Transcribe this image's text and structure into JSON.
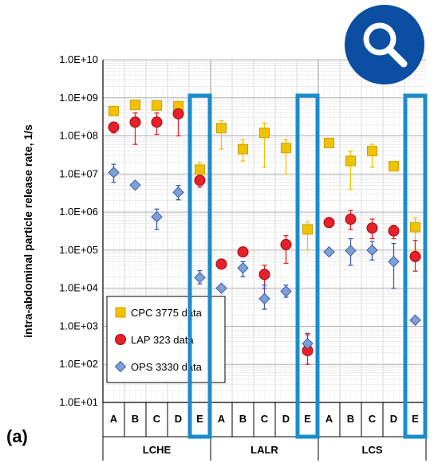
{
  "panel_label": "(a)",
  "zoom_icon": "magnifier-icon",
  "colors": {
    "cpc": "#f2c200",
    "cpc_edge": "#c9a000",
    "lap": "#e8202a",
    "lap_edge": "#9a0d12",
    "ops": "#7e9fd8",
    "ops_edge": "#3a5da8",
    "highlight": "#1a8ccc",
    "badge": "#0b4ea2"
  },
  "chart_data": {
    "type": "scatter",
    "ylabel": "intra-abdominal  particle release rate, 1/s",
    "yscale": "log",
    "ylim": [
      10,
      10000000000
    ],
    "yticks": [
      "1.0E+01",
      "1.0E+02",
      "1.0E+03",
      "1.0E+04",
      "1.0E+05",
      "1.0E+06",
      "1.0E+07",
      "1.0E+08",
      "1.0E+09",
      "1.0E+10"
    ],
    "groups": [
      "LCHE",
      "LALR",
      "LCS"
    ],
    "categories": [
      "A",
      "B",
      "C",
      "D",
      "E",
      "A",
      "B",
      "C",
      "D",
      "E",
      "A",
      "B",
      "C",
      "D",
      "E"
    ],
    "highlighted_categories": [
      4,
      9,
      14
    ],
    "legend_position": "lower-left",
    "series": [
      {
        "name": "CPC 3775 data",
        "marker": "square",
        "values": [
          450000000,
          650000000,
          630000000,
          600000000,
          13000000,
          160000000,
          45000000,
          120000000,
          48000000,
          350000,
          65000000,
          22000000,
          40000000,
          16000000,
          400000
        ],
        "err_low": [
          350000000,
          500000000,
          480000000,
          450000000,
          9000000,
          45000000,
          22000000,
          15000000,
          10000000,
          100000,
          55000000,
          4000000,
          15000000,
          13000000,
          100000
        ],
        "err_high": [
          600000000,
          800000000,
          800000000,
          800000000,
          20000000,
          250000000,
          80000000,
          220000000,
          80000000,
          550000,
          80000000,
          40000000,
          60000000,
          20000000,
          700000
        ]
      },
      {
        "name": "LAP 323 data",
        "marker": "circle",
        "values": [
          170000000,
          230000000,
          230000000,
          380000000,
          6800000,
          43000,
          90000,
          23000,
          140000,
          230,
          530000,
          650000,
          380000,
          320000,
          68000
        ],
        "err_low": [
          120000000,
          60000000,
          110000000,
          100000000,
          4500000,
          43000,
          90000,
          10000,
          45000,
          100,
          500000,
          350000,
          200000,
          200000,
          28000
        ],
        "err_high": [
          220000000,
          400000000,
          400000000,
          500000000,
          9000000,
          43000,
          90000,
          40000,
          240000,
          600,
          560000,
          1100000,
          650000,
          450000,
          180000
        ]
      },
      {
        "name": "OPS 3330 data",
        "marker": "diamond",
        "values": [
          11000000,
          5100000,
          750000,
          3300000,
          19000,
          10000,
          34000,
          5300,
          8300,
          350,
          90000,
          97000,
          100000,
          50000,
          1450
        ],
        "err_low": [
          6000000,
          5100000,
          350000,
          2100000,
          13000,
          10000,
          20000,
          2800,
          5800,
          200,
          90000,
          40000,
          55000,
          10000,
          1300
        ],
        "err_high": [
          18000000,
          5100000,
          1200000,
          5000000,
          29000,
          10000,
          50000,
          12000,
          12000,
          650,
          90000,
          200000,
          170000,
          150000,
          1600
        ]
      }
    ]
  }
}
